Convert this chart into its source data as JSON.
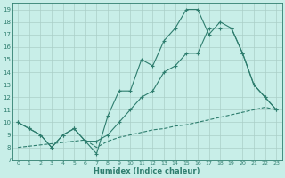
{
  "line1_x": [
    0,
    1,
    2,
    3,
    4,
    5,
    6,
    7,
    8,
    9,
    10,
    11,
    12,
    13,
    14,
    15,
    16,
    17,
    18,
    19,
    20,
    21,
    22,
    23
  ],
  "line1_y": [
    10,
    9.5,
    9,
    8,
    9,
    9.5,
    8.5,
    7.5,
    10.5,
    12.5,
    12.5,
    15,
    14.5,
    16.5,
    17.5,
    19,
    19,
    17,
    18,
    17.5,
    15.5,
    13,
    12,
    11
  ],
  "line2_x": [
    0,
    1,
    2,
    3,
    4,
    5,
    6,
    7,
    8,
    9,
    10,
    11,
    12,
    13,
    14,
    15,
    16,
    17,
    18,
    19,
    20,
    21,
    22,
    23
  ],
  "line2_y": [
    10,
    9.5,
    9,
    8,
    9,
    9.5,
    8.5,
    8.5,
    9,
    10,
    11,
    12,
    12.5,
    14,
    14.5,
    15.5,
    15.5,
    17.5,
    17.5,
    17.5,
    15.5,
    13,
    12,
    11
  ],
  "line3_x": [
    0,
    1,
    2,
    3,
    4,
    5,
    6,
    7,
    8,
    9,
    10,
    11,
    12,
    13,
    14,
    15,
    16,
    17,
    18,
    19,
    20,
    21,
    22,
    23
  ],
  "line3_y": [
    8.0,
    8.1,
    8.2,
    8.3,
    8.4,
    8.5,
    8.6,
    8.0,
    8.5,
    8.8,
    9.0,
    9.2,
    9.4,
    9.5,
    9.7,
    9.8,
    10.0,
    10.2,
    10.4,
    10.6,
    10.8,
    11.0,
    11.2,
    11.0
  ],
  "color": "#2E7D6E",
  "bg_color": "#C8EEE8",
  "grid_color": "#AACFC8",
  "xlabel": "Humidex (Indice chaleur)",
  "ylim": [
    7,
    19.5
  ],
  "xlim": [
    -0.5,
    23.5
  ],
  "yticks": [
    7,
    8,
    9,
    10,
    11,
    12,
    13,
    14,
    15,
    16,
    17,
    18,
    19
  ],
  "xticks": [
    0,
    1,
    2,
    3,
    4,
    5,
    6,
    7,
    8,
    9,
    10,
    11,
    12,
    13,
    14,
    15,
    16,
    17,
    18,
    19,
    20,
    21,
    22,
    23
  ],
  "xtick_labels": [
    "0",
    "1",
    "2",
    "3",
    "4",
    "5",
    "6",
    "7",
    "8",
    "9",
    "10",
    "11",
    "12",
    "13",
    "14",
    "15",
    "16",
    "17",
    "18",
    "19",
    "20",
    "21",
    "22",
    "23"
  ]
}
